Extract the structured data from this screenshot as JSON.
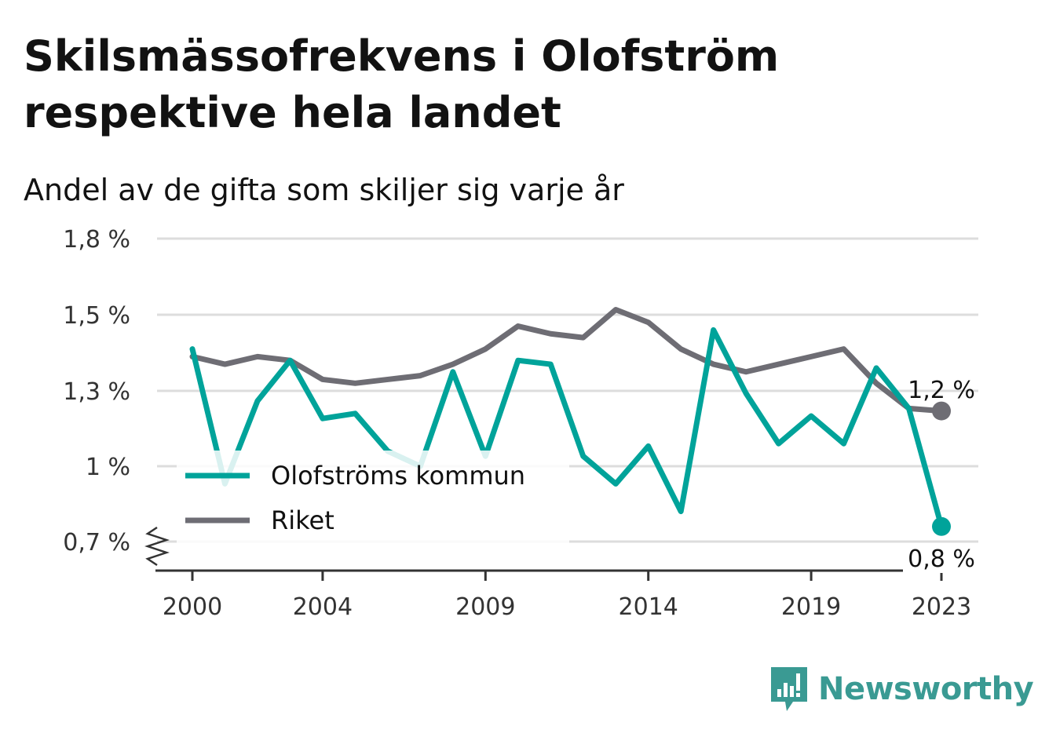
{
  "title": "Skilsmässofrekvens i Olofström respektive hela landet",
  "subtitle": "Andel av de gifta som skiljer sig varje år",
  "brand": "Newsworthy",
  "colors": {
    "olofstrom": "#00a39a",
    "riket": "#6e6d74",
    "grid": "#dddddd",
    "brand": "#3a9a93"
  },
  "chart_data": {
    "type": "line",
    "x": [
      2000,
      2001,
      2002,
      2003,
      2004,
      2005,
      2006,
      2007,
      2008,
      2009,
      2010,
      2011,
      2012,
      2013,
      2014,
      2015,
      2016,
      2017,
      2018,
      2019,
      2020,
      2021,
      2022,
      2023
    ],
    "x_tick_values": [
      2000,
      2004,
      2009,
      2014,
      2019,
      2023
    ],
    "x_tick_labels": [
      "2000",
      "2004",
      "2009",
      "2014",
      "2019",
      "2023"
    ],
    "y_tick_values": [
      0.7,
      1.0,
      1.3,
      1.5,
      1.8
    ],
    "y_tick_labels": [
      "0,7 %",
      "1 %",
      "1,3 %",
      "1,5 %",
      "1,8 %"
    ],
    "y_axis_broken": true,
    "grid": true,
    "legend_position": "bottom-left",
    "series": [
      {
        "name": "Olofströms kommun",
        "color": "#00a39a",
        "values": [
          1.41,
          0.93,
          1.26,
          1.38,
          1.19,
          1.21,
          1.06,
          1.0,
          1.35,
          1.04,
          1.38,
          1.37,
          1.04,
          0.93,
          1.08,
          0.82,
          1.46,
          1.29,
          1.09,
          1.2,
          1.09,
          1.36,
          1.23,
          0.76
        ],
        "end_label": "0,8 %"
      },
      {
        "name": "Riket",
        "color": "#6e6d74",
        "values": [
          1.39,
          1.37,
          1.39,
          1.38,
          1.33,
          1.32,
          1.33,
          1.34,
          1.37,
          1.41,
          1.47,
          1.45,
          1.44,
          1.52,
          1.48,
          1.41,
          1.37,
          1.35,
          1.37,
          1.39,
          1.41,
          1.32,
          1.23,
          1.22
        ],
        "end_label": "1,2 %"
      }
    ]
  }
}
